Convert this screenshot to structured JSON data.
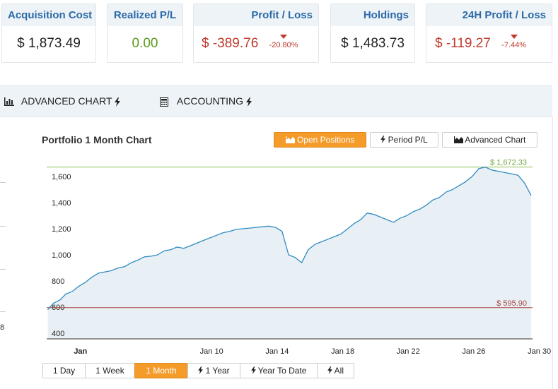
{
  "summary": {
    "acquisition_cost": {
      "label": "Acquisition Cost",
      "value": "$ 1,873.49"
    },
    "realized_pl": {
      "label": "Realized P/L",
      "value": "0.00"
    },
    "profit_loss": {
      "label": "Profit / Loss",
      "value": "$ -389.76",
      "percent": "-20.80%"
    },
    "holdings": {
      "label": "Holdings",
      "value": "$ 1,483.73"
    },
    "pl_24h": {
      "label": "24H Profit / Loss",
      "value": "$ -119.27",
      "percent": "-7.44%"
    }
  },
  "tabs": [
    {
      "label": "ADVANCED CHART",
      "icon": "bar-chart-icon"
    },
    {
      "label": "ACCOUNTING",
      "icon": "calculator-icon"
    }
  ],
  "left_stub_label": "8",
  "panel": {
    "title": "Portfolio 1 Month Chart",
    "view_buttons": [
      {
        "label": "Open Positions",
        "icon": "area-chart-icon",
        "active": true
      },
      {
        "label": "Period P/L",
        "icon": "bolt-icon",
        "active": false
      },
      {
        "label": "Advanced Chart",
        "icon": "area-chart-icon",
        "active": false
      }
    ],
    "range_buttons": [
      {
        "label": "1 Day",
        "icon": "",
        "active": false
      },
      {
        "label": "1 Week",
        "icon": "",
        "active": false
      },
      {
        "label": "1 Month",
        "icon": "",
        "active": true
      },
      {
        "label": "1 Year",
        "icon": "bolt-icon",
        "active": false
      },
      {
        "label": "Year To Date",
        "icon": "bolt-icon",
        "active": false
      },
      {
        "label": "All",
        "icon": "bolt-icon",
        "active": false
      }
    ]
  },
  "chart_data": {
    "type": "area",
    "ylim": [
      400,
      1650
    ],
    "yticks": [
      400,
      600,
      800,
      1000,
      1200,
      1400,
      1600
    ],
    "xlim": [
      0,
      29.5
    ],
    "xticks": [
      {
        "label": "Jan",
        "x": 2,
        "bold": true
      },
      {
        "label": "Jan 10",
        "x": 10
      },
      {
        "label": "Jan 14",
        "x": 14
      },
      {
        "label": "Jan 18",
        "x": 18
      },
      {
        "label": "Jan 22",
        "x": 22
      },
      {
        "label": "Jan 26",
        "x": 26
      },
      {
        "label": "Jan 30",
        "x": 30
      }
    ],
    "max_line": {
      "value": 1672.33,
      "label": "$ 1,672.33",
      "color": "#8cc152"
    },
    "min_line": {
      "value": 595.9,
      "label": "$ 595.90",
      "color": "#a94442"
    },
    "series_color": "#2e8bc0",
    "fill_color": "#e8f0f5",
    "x": [
      0,
      0.35,
      0.75,
      1.1,
      1.5,
      1.9,
      2.3,
      2.7,
      3.1,
      3.5,
      3.9,
      4.3,
      4.7,
      5.1,
      5.5,
      5.9,
      6.3,
      6.7,
      7.1,
      7.5,
      7.9,
      8.3,
      8.7,
      9.1,
      9.5,
      9.9,
      10.3,
      10.7,
      11.1,
      11.5,
      11.9,
      12.3,
      12.7,
      13.1,
      13.5,
      13.9,
      14.3,
      14.7,
      15.1,
      15.5,
      15.9,
      16.3,
      16.7,
      17.1,
      17.5,
      17.9,
      18.3,
      18.7,
      19.1,
      19.5,
      19.9,
      20.3,
      20.7,
      21.1,
      21.5,
      21.9,
      22.3,
      22.7,
      23.1,
      23.5,
      23.9,
      24.3,
      24.7,
      25.1,
      25.5,
      25.9,
      26.3,
      26.7,
      27.1,
      27.5,
      27.9,
      28.3,
      28.7,
      29.1,
      29.5
    ],
    "y": [
      580,
      630,
      655,
      700,
      720,
      760,
      790,
      830,
      860,
      870,
      880,
      900,
      910,
      940,
      960,
      985,
      990,
      1000,
      1030,
      1040,
      1060,
      1050,
      1070,
      1090,
      1110,
      1130,
      1150,
      1170,
      1180,
      1195,
      1200,
      1205,
      1210,
      1215,
      1220,
      1210,
      1180,
      1000,
      980,
      940,
      1040,
      1080,
      1100,
      1120,
      1140,
      1160,
      1200,
      1240,
      1270,
      1320,
      1310,
      1290,
      1270,
      1250,
      1280,
      1300,
      1330,
      1350,
      1380,
      1420,
      1440,
      1480,
      1500,
      1530,
      1560,
      1600,
      1660,
      1672,
      1650,
      1640,
      1630,
      1620,
      1610,
      1550,
      1455
    ]
  }
}
